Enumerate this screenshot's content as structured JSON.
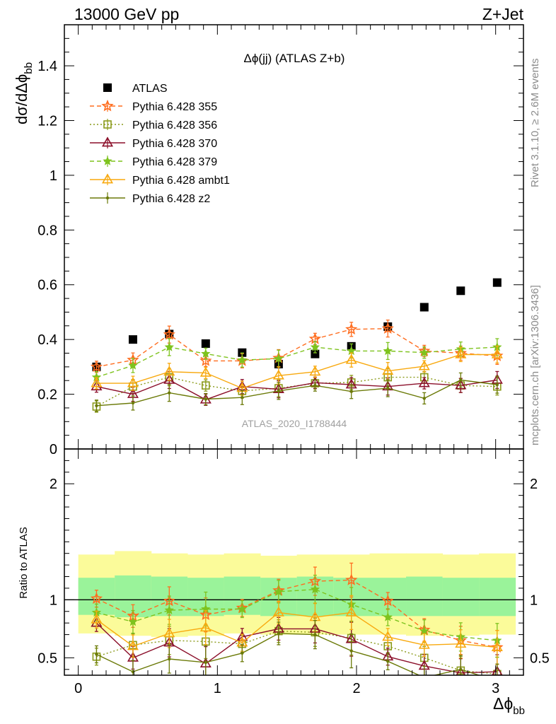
{
  "header": {
    "left": "13000 GeV pp",
    "right": "Z+Jet"
  },
  "side_text": {
    "rivet": "Rivet 3.1.10, ≥ 2.6M events",
    "mcplots": "mcplots.cern.ch [arXiv:1306.3436]"
  },
  "chart_data": [
    {
      "type": "scatter",
      "title": "Δϕ(jj) (ATLAS Z+b)",
      "watermark": "ATLAS_2020_I1788444",
      "xlabel": "Δϕ",
      "xlabel_sub": "bb",
      "ylabel": "dσ/dΔϕ",
      "ylabel_sub": "bb",
      "xlim": [
        -0.1,
        3.2
      ],
      "ylim": [
        0,
        1.55
      ],
      "x_ticks": [
        "0",
        "1",
        "2",
        "3"
      ],
      "y_ticks": [
        {
          "v": 0.2,
          "label": "0.2"
        },
        {
          "v": 0.4,
          "label": "0.4"
        },
        {
          "v": 0.6,
          "label": "0.6"
        },
        {
          "v": 0.8,
          "label": "0.8"
        },
        {
          "v": 1.0,
          "label": "1"
        },
        {
          "v": 1.2,
          "label": "1.2"
        },
        {
          "v": 1.4,
          "label": "1.4"
        },
        {
          "v": 0.0,
          "label": "0"
        }
      ],
      "x": [
        0.131,
        0.393,
        0.654,
        0.916,
        1.178,
        1.44,
        1.702,
        1.963,
        2.225,
        2.487,
        2.749,
        3.011
      ],
      "series": [
        {
          "name": "ATLAS",
          "color": "#000000",
          "marker": "square",
          "line": "none",
          "values": [
            0.3,
            0.4,
            0.42,
            0.385,
            0.352,
            0.31,
            0.347,
            0.375,
            0.447,
            0.518,
            0.578,
            0.608
          ]
        },
        {
          "name": "Pythia 6.428 355",
          "color": "#ff6d1f",
          "marker": "star-open",
          "line": "dashed",
          "values": [
            0.3,
            0.325,
            0.418,
            0.322,
            0.322,
            0.332,
            0.402,
            0.437,
            0.44,
            0.358,
            0.35,
            0.34
          ]
        },
        {
          "name": "Pythia 6.428 356",
          "color": "#8a9a1a",
          "marker": "square-open",
          "line": "dotted",
          "values": [
            0.155,
            0.228,
            0.262,
            0.232,
            0.212,
            0.222,
            0.24,
            0.243,
            0.262,
            0.262,
            0.232,
            0.228
          ]
        },
        {
          "name": "Pythia 6.428 370",
          "color": "#8b0f2a",
          "marker": "triangle-open",
          "line": "solid",
          "values": [
            0.228,
            0.2,
            0.252,
            0.18,
            0.228,
            0.218,
            0.242,
            0.235,
            0.228,
            0.24,
            0.232,
            0.252
          ]
        },
        {
          "name": "Pythia 6.428 379",
          "color": "#7ec31e",
          "marker": "star",
          "line": "dashed",
          "values": [
            0.262,
            0.305,
            0.372,
            0.348,
            0.325,
            0.33,
            0.372,
            0.358,
            0.358,
            0.352,
            0.365,
            0.372
          ]
        },
        {
          "name": "Pythia 6.428 ambt1",
          "color": "#f8a90f",
          "marker": "triangle-open",
          "line": "solid",
          "values": [
            0.24,
            0.24,
            0.282,
            0.278,
            0.222,
            0.268,
            0.282,
            0.325,
            0.285,
            0.302,
            0.345,
            0.345
          ]
        },
        {
          "name": "Pythia 6.428 z2",
          "color": "#6b7a08",
          "marker": "dot",
          "line": "solid",
          "values": [
            0.158,
            0.168,
            0.205,
            0.182,
            0.188,
            0.212,
            0.232,
            0.21,
            0.222,
            0.185,
            0.252,
            0.235
          ]
        }
      ]
    },
    {
      "type": "line",
      "ylabel": "Ratio to ATLAS",
      "ylim": [
        0.35,
        2.3
      ],
      "y_ticks": [
        {
          "v": 0.5,
          "label": "0.5"
        },
        {
          "v": 1.0,
          "label": "1"
        },
        {
          "v": 2.0,
          "label": "2"
        }
      ],
      "band_edges": [
        0,
        0.262,
        0.524,
        0.785,
        1.047,
        1.309,
        1.571,
        1.833,
        2.094,
        2.356,
        2.618,
        2.88,
        3.142
      ],
      "band_yellow": {
        "lo": [
          0.71,
          0.69,
          0.68,
          0.69,
          0.71,
          0.7,
          0.7,
          0.7,
          0.7,
          0.69,
          0.69,
          0.7
        ],
        "hi": [
          1.39,
          1.42,
          1.4,
          1.39,
          1.4,
          1.38,
          1.39,
          1.39,
          1.4,
          1.4,
          1.39,
          1.4
        ]
      },
      "band_green": {
        "lo": [
          0.87,
          0.85,
          0.86,
          0.86,
          0.87,
          0.86,
          0.86,
          0.86,
          0.86,
          0.86,
          0.86,
          0.86
        ],
        "hi": [
          1.19,
          1.21,
          1.2,
          1.19,
          1.2,
          1.19,
          1.2,
          1.19,
          1.19,
          1.2,
          1.19,
          1.19
        ]
      },
      "reference_line": 1.0,
      "series": [
        {
          "name": "Pythia 6.428 355",
          "color": "#ff6d1f",
          "marker": "star-open",
          "line": "dashed",
          "values": [
            1.01,
            0.86,
            0.99,
            0.87,
            0.93,
            1.08,
            1.16,
            1.17,
            0.99,
            0.74,
            0.65,
            0.59
          ]
        },
        {
          "name": "Pythia 6.428 356",
          "color": "#8a9a1a",
          "marker": "square-open",
          "line": "dotted",
          "values": [
            0.51,
            0.61,
            0.65,
            0.64,
            0.62,
            0.73,
            0.72,
            0.67,
            0.6,
            0.5,
            0.39,
            0.36
          ]
        },
        {
          "name": "Pythia 6.428 370",
          "color": "#8b0f2a",
          "marker": "triangle-open",
          "line": "solid",
          "values": [
            0.8,
            0.5,
            0.63,
            0.45,
            0.68,
            0.75,
            0.75,
            0.66,
            0.51,
            0.43,
            0.37,
            0.38
          ]
        },
        {
          "name": "Pythia 6.428 379",
          "color": "#7ec31e",
          "marker": "star",
          "line": "dashed",
          "values": [
            0.89,
            0.81,
            0.91,
            0.92,
            0.92,
            1.07,
            1.09,
            0.96,
            0.85,
            0.73,
            0.68,
            0.65
          ]
        },
        {
          "name": "Pythia 6.428 ambt1",
          "color": "#f8a90f",
          "marker": "triangle-open",
          "line": "solid",
          "values": [
            0.83,
            0.6,
            0.71,
            0.76,
            0.63,
            0.89,
            0.85,
            0.89,
            0.68,
            0.61,
            0.62,
            0.59
          ]
        },
        {
          "name": "Pythia 6.428 z2",
          "color": "#6b7a08",
          "marker": "dot",
          "line": "solid",
          "values": [
            0.53,
            0.38,
            0.49,
            0.46,
            0.54,
            0.71,
            0.7,
            0.56,
            0.47,
            0.33,
            0.4,
            0.3
          ]
        }
      ]
    }
  ]
}
